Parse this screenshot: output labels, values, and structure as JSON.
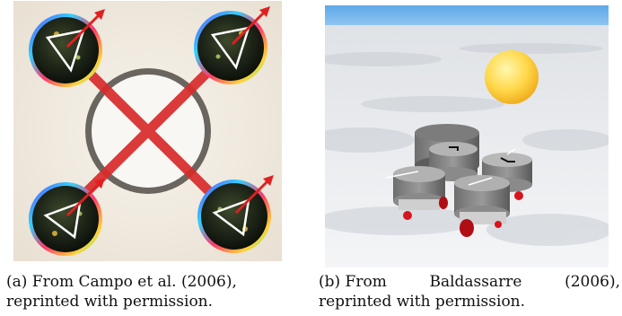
{
  "figure_a": {
    "caption_line1": [
      "(a) From Campo et al. (2006),"
    ],
    "caption_line2": "reprinted with permission."
  },
  "figure_b": {
    "caption_line1": [
      "(b) From",
      "Baldassarre",
      "(2006),"
    ],
    "caption_line2": "reprinted with permission."
  }
}
